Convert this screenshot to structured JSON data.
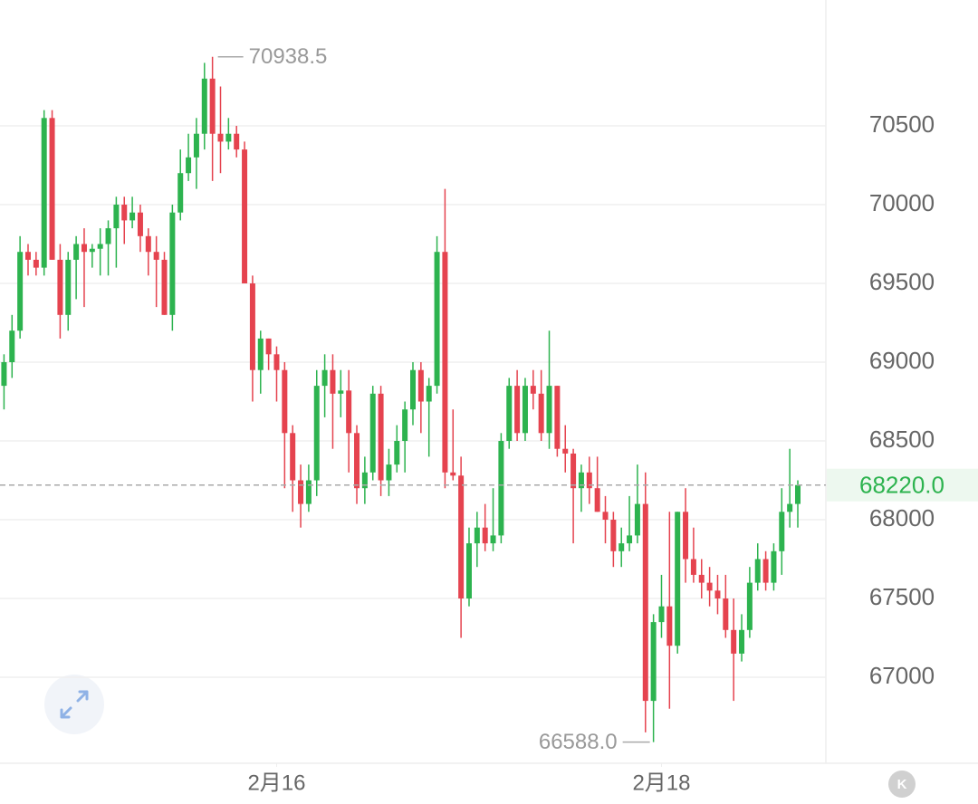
{
  "chart_data": {
    "type": "candlestick",
    "open": [
      68850,
      69000,
      69200,
      69700,
      69650,
      69600,
      70550,
      69650,
      69300,
      69650,
      69750,
      69700,
      69720,
      69750,
      69850,
      70000,
      69900,
      69950,
      69800,
      69700,
      69650,
      69300,
      69950,
      70200,
      70300,
      70450,
      70800,
      70450,
      70400,
      70450,
      70350,
      69500,
      68950,
      69150,
      69050,
      68950,
      68550,
      68250,
      68100,
      68250,
      68850,
      68950,
      68800,
      68820,
      68550,
      68200,
      68300,
      68800,
      68250,
      68350,
      68500,
      68700,
      68950,
      68750,
      68850,
      69700,
      68300,
      68280,
      67500,
      67850,
      67950,
      67850,
      67900,
      68500,
      68850,
      68550,
      68850,
      68800,
      68550,
      68850,
      68450,
      68420,
      68200,
      68300,
      68200,
      68050,
      68000,
      67800,
      67850,
      67900,
      68100,
      66850,
      67350,
      67450,
      67200,
      68050,
      67750,
      67650,
      67600,
      67550,
      67500,
      67300,
      67150,
      67300,
      67600,
      67750,
      67600,
      67800,
      68050,
      68100
    ],
    "high": [
      69050,
      69300,
      69800,
      69750,
      69700,
      70600,
      70600,
      69750,
      69700,
      69800,
      69850,
      69750,
      69850,
      69900,
      70050,
      70050,
      70050,
      70000,
      69850,
      69800,
      69700,
      70000,
      70350,
      70450,
      70550,
      70900,
      70938.5,
      70750,
      70550,
      70500,
      70400,
      69550,
      69200,
      69150,
      69100,
      69000,
      68600,
      68350,
      68350,
      68950,
      69050,
      69050,
      68950,
      68950,
      68600,
      68400,
      68850,
      68850,
      68450,
      68600,
      68750,
      69000,
      69000,
      68900,
      69800,
      70100,
      68700,
      68400,
      67950,
      68050,
      68100,
      68200,
      68550,
      68900,
      68950,
      68900,
      68950,
      68950,
      69200,
      68850,
      68600,
      68450,
      68350,
      68400,
      68400,
      68150,
      68050,
      67950,
      68150,
      68350,
      68300,
      67400,
      67650,
      68050,
      68050,
      68200,
      67950,
      67750,
      67700,
      67650,
      67650,
      67500,
      67400,
      67700,
      67850,
      67800,
      67850,
      68200,
      68450,
      68250
    ],
    "low": [
      68700,
      68900,
      69150,
      69550,
      69550,
      69550,
      69650,
      69150,
      69200,
      69400,
      69350,
      69600,
      69550,
      69550,
      69600,
      69750,
      69850,
      69700,
      69550,
      69350,
      69300,
      69200,
      69900,
      70150,
      70100,
      70350,
      70150,
      70200,
      70350,
      70300,
      69500,
      68750,
      68800,
      68950,
      68750,
      68200,
      68050,
      67950,
      68050,
      68150,
      68650,
      68450,
      68650,
      68300,
      68100,
      68100,
      68250,
      68150,
      68150,
      68300,
      68300,
      68600,
      68550,
      68400,
      68800,
      68200,
      68250,
      67250,
      67450,
      67700,
      67800,
      67800,
      67850,
      68450,
      68500,
      68500,
      68700,
      68500,
      68450,
      68400,
      68300,
      67850,
      68050,
      68100,
      68050,
      67850,
      67700,
      67700,
      67800,
      67850,
      66650,
      66588,
      67250,
      66800,
      67150,
      67600,
      67600,
      67500,
      67450,
      67400,
      67250,
      66850,
      67100,
      67250,
      67550,
      67550,
      67550,
      67650,
      67950,
      67950
    ],
    "close": [
      69000,
      69200,
      69700,
      69650,
      69600,
      70550,
      69650,
      69300,
      69650,
      69750,
      69700,
      69720,
      69750,
      69850,
      70000,
      69900,
      69950,
      69800,
      69700,
      69650,
      69300,
      69950,
      70200,
      70300,
      70450,
      70800,
      70450,
      70400,
      70450,
      70350,
      69500,
      68950,
      69150,
      69050,
      68950,
      68550,
      68250,
      68100,
      68250,
      68850,
      68950,
      68800,
      68820,
      68550,
      68200,
      68300,
      68800,
      68250,
      68350,
      68500,
      68700,
      68950,
      68750,
      68850,
      69700,
      68300,
      68280,
      67500,
      67850,
      67950,
      67850,
      67900,
      68500,
      68850,
      68550,
      68850,
      68800,
      68550,
      68850,
      68450,
      68420,
      68200,
      68300,
      68200,
      68050,
      68000,
      67800,
      67850,
      67900,
      68100,
      66850,
      67350,
      67450,
      67200,
      68050,
      67750,
      67650,
      67600,
      67550,
      67500,
      67300,
      67150,
      67300,
      67600,
      67750,
      67600,
      67800,
      68050,
      68100,
      68220
    ],
    "up_color": "#2db34f",
    "down_color": "#e5434f",
    "xlim": [
      -0.5,
      102.5
    ],
    "xticks": [
      {
        "value": 34,
        "label": "2月16"
      },
      {
        "value": 82,
        "label": "2月18"
      }
    ],
    "ylim": [
      66454,
      71299
    ],
    "yticks": [
      67000,
      67500,
      68000,
      68500,
      69000,
      69500,
      70000,
      70500
    ],
    "grid": true,
    "last_price": {
      "value": 68220,
      "label": "68220.0"
    },
    "max_label": {
      "value": 70938.5,
      "label": "70938.5"
    },
    "min_label": {
      "value": 66588,
      "label": "66588.0"
    }
  },
  "controls": {
    "k_button": "K"
  }
}
